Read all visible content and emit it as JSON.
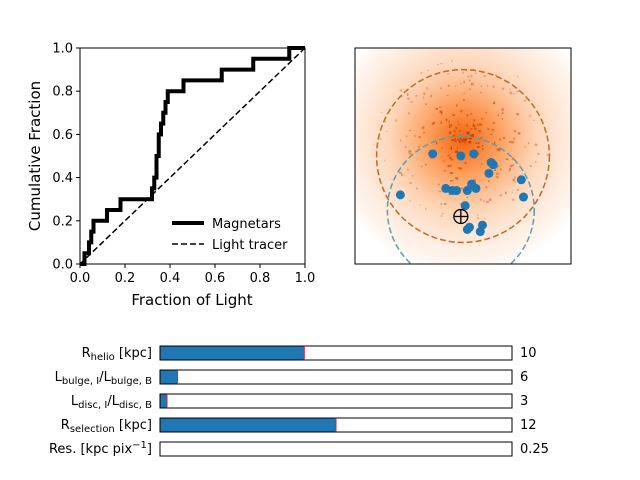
{
  "chart_data": [
    {
      "type": "line",
      "xlabel": "Fraction of Light",
      "ylabel": "Cumulative Fraction",
      "xlim": [
        0,
        1
      ],
      "ylim": [
        0,
        1
      ],
      "xticks": [
        "0.0",
        "0.2",
        "0.4",
        "0.6",
        "0.8",
        "1.0"
      ],
      "yticks": [
        "0.0",
        "0.2",
        "0.4",
        "0.6",
        "0.8",
        "1.0"
      ],
      "legend_position": "lower-right",
      "series": [
        {
          "name": "Magnetars",
          "style": "step",
          "color": "#000000",
          "x": [
            0.0,
            0.02,
            0.04,
            0.05,
            0.06,
            0.12,
            0.18,
            0.32,
            0.33,
            0.34,
            0.35,
            0.36,
            0.37,
            0.38,
            0.39,
            0.46,
            0.63,
            0.77,
            0.93,
            1.0
          ],
          "y": [
            0.0,
            0.05,
            0.1,
            0.15,
            0.2,
            0.25,
            0.3,
            0.35,
            0.4,
            0.5,
            0.6,
            0.65,
            0.7,
            0.75,
            0.8,
            0.85,
            0.9,
            0.95,
            1.0,
            1.0
          ]
        },
        {
          "name": "Light tracer",
          "style": "dashed",
          "color": "#000000",
          "x": [
            0,
            1
          ],
          "y": [
            0,
            1
          ]
        }
      ]
    },
    {
      "type": "scatter",
      "background": "heatmap",
      "colors": {
        "points": "#1f77b4",
        "circle_outer": "#c9661f",
        "circle_inner": "#5a9fad",
        "heat": "#ff6a00"
      },
      "circles": [
        {
          "name": "outer-dashed-circle",
          "cx": 0.5,
          "cy": 0.5,
          "r": 0.4,
          "color": "#c9661f"
        },
        {
          "name": "inner-dashed-circle",
          "cx": 0.49,
          "cy": 0.25,
          "r": 0.34,
          "color": "#5a9fad"
        }
      ],
      "sun_marker": {
        "x": 0.49,
        "y": 0.22
      },
      "points": [
        [
          0.36,
          0.51
        ],
        [
          0.49,
          0.5
        ],
        [
          0.55,
          0.51
        ],
        [
          0.63,
          0.47
        ],
        [
          0.64,
          0.46
        ],
        [
          0.62,
          0.42
        ],
        [
          0.21,
          0.32
        ],
        [
          0.42,
          0.35
        ],
        [
          0.45,
          0.34
        ],
        [
          0.47,
          0.34
        ],
        [
          0.52,
          0.34
        ],
        [
          0.54,
          0.37
        ],
        [
          0.56,
          0.35
        ],
        [
          0.77,
          0.39
        ],
        [
          0.78,
          0.31
        ],
        [
          0.51,
          0.27
        ],
        [
          0.59,
          0.18
        ],
        [
          0.52,
          0.16
        ],
        [
          0.53,
          0.17
        ],
        [
          0.58,
          0.15
        ]
      ]
    },
    {
      "type": "bar",
      "orientation": "horizontal",
      "categories": [
        "R_helio [kpc]",
        "L_bulge,I/L_bulge,B",
        "L_disc,I/L_disc,B",
        "R_selection [kpc]",
        "Res. [kpc pix^-1]"
      ],
      "fractions": [
        0.41,
        0.05,
        0.02,
        0.5,
        0.0
      ],
      "value_labels": [
        "10",
        "6",
        "3",
        "12",
        "0.25"
      ],
      "colors": {
        "fill": "#1f77b4",
        "marker": "#d62728"
      }
    }
  ]
}
